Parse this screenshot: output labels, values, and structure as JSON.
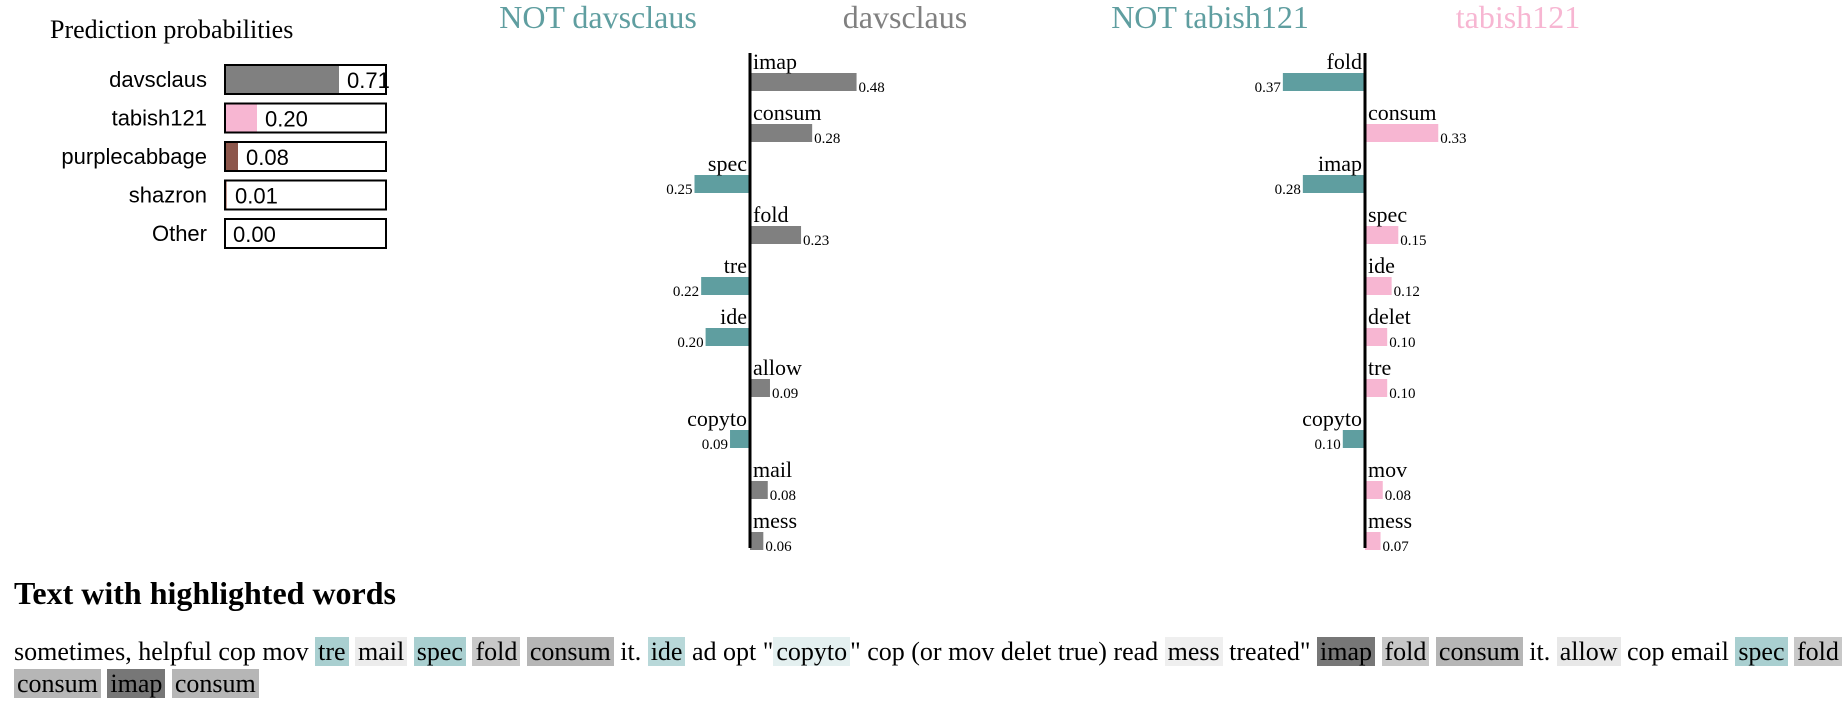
{
  "chart_data": [
    {
      "type": "bar",
      "title": "Prediction probabilities",
      "categories": [
        "davsclaus",
        "tabish121",
        "purplecabbage",
        "shazron",
        "Other"
      ],
      "values": [
        0.71,
        0.2,
        0.08,
        0.01,
        0.0
      ],
      "value_labels": [
        "0.71",
        "0.20",
        "0.08",
        "0.01",
        "0.00"
      ],
      "colors": [
        "#808080",
        "#f7b6d2",
        "#8c564b",
        "#c49c94",
        "#ffffff"
      ],
      "xlim": [
        0,
        1
      ]
    },
    {
      "type": "bar",
      "left_label": "NOT davsclaus",
      "right_label": "davsclaus",
      "left_color": "#5f9ea0",
      "right_color": "#808080",
      "categories": [
        "imap",
        "consum",
        "spec",
        "fold",
        "tre",
        "ide",
        "allow",
        "copyto",
        "mail",
        "mess"
      ],
      "values": [
        0.48,
        0.28,
        -0.25,
        0.23,
        -0.22,
        -0.2,
        0.09,
        -0.09,
        0.08,
        0.06
      ],
      "value_labels": [
        "0.48",
        "0.28",
        "0.25",
        "0.23",
        "0.22",
        "0.20",
        "0.09",
        "0.09",
        "0.08",
        "0.06"
      ]
    },
    {
      "type": "bar",
      "left_label": "NOT tabish121",
      "right_label": "tabish121",
      "left_color": "#5f9ea0",
      "right_color": "#f7b6d2",
      "categories": [
        "fold",
        "consum",
        "imap",
        "spec",
        "ide",
        "delet",
        "tre",
        "copyto",
        "mov",
        "mess"
      ],
      "values": [
        -0.37,
        0.33,
        -0.28,
        0.15,
        0.12,
        0.1,
        0.1,
        -0.1,
        0.08,
        0.07
      ],
      "value_labels": [
        "0.37",
        "0.33",
        "0.28",
        "0.15",
        "0.12",
        "0.10",
        "0.10",
        "0.10",
        "0.08",
        "0.07"
      ]
    }
  ],
  "highlight": {
    "title": "Text with highlighted words",
    "tokens": [
      {
        "t": "sometimes, helpful cop mov ",
        "bg": null
      },
      {
        "t": "tre",
        "bg": "#a9cfd0"
      },
      {
        "t": " ",
        "bg": null
      },
      {
        "t": "mail",
        "bg": "#ececec"
      },
      {
        "t": " ",
        "bg": null
      },
      {
        "t": "spec",
        "bg": "#a9cfd0"
      },
      {
        "t": " ",
        "bg": null
      },
      {
        "t": "fold",
        "bg": "#c8c8c8"
      },
      {
        "t": " ",
        "bg": null
      },
      {
        "t": "consum",
        "bg": "#b6b6b6"
      },
      {
        "t": " it. ",
        "bg": null
      },
      {
        "t": "ide",
        "bg": "#b8d8d9"
      },
      {
        "t": " ad opt \"",
        "bg": null
      },
      {
        "t": "copyto",
        "bg": "#e4f0f0"
      },
      {
        "t": "\" cop (or mov delet true) read ",
        "bg": null
      },
      {
        "t": "mess",
        "bg": "#efefef"
      },
      {
        "t": " treated\" ",
        "bg": null
      },
      {
        "t": "imap",
        "bg": "#777777"
      },
      {
        "t": " ",
        "bg": null
      },
      {
        "t": "fold",
        "bg": "#c8c8c8"
      },
      {
        "t": " ",
        "bg": null
      },
      {
        "t": "consum",
        "bg": "#b6b6b6"
      },
      {
        "t": " it. ",
        "bg": null
      },
      {
        "t": "allow",
        "bg": "#e8e8e8"
      },
      {
        "t": " cop email ",
        "bg": null
      },
      {
        "t": "spec",
        "bg": "#a9cfd0"
      },
      {
        "t": " ",
        "bg": null
      },
      {
        "t": "fold",
        "bg": "#c8c8c8"
      },
      {
        "t": " ",
        "bg": null
      },
      {
        "t": "consum",
        "bg": "#b6b6b6"
      },
      {
        "t": " ",
        "bg": null
      },
      {
        "t": "imap",
        "bg": "#777777"
      },
      {
        "t": " ",
        "bg": null
      },
      {
        "t": "consum",
        "bg": "#b6b6b6"
      }
    ]
  }
}
